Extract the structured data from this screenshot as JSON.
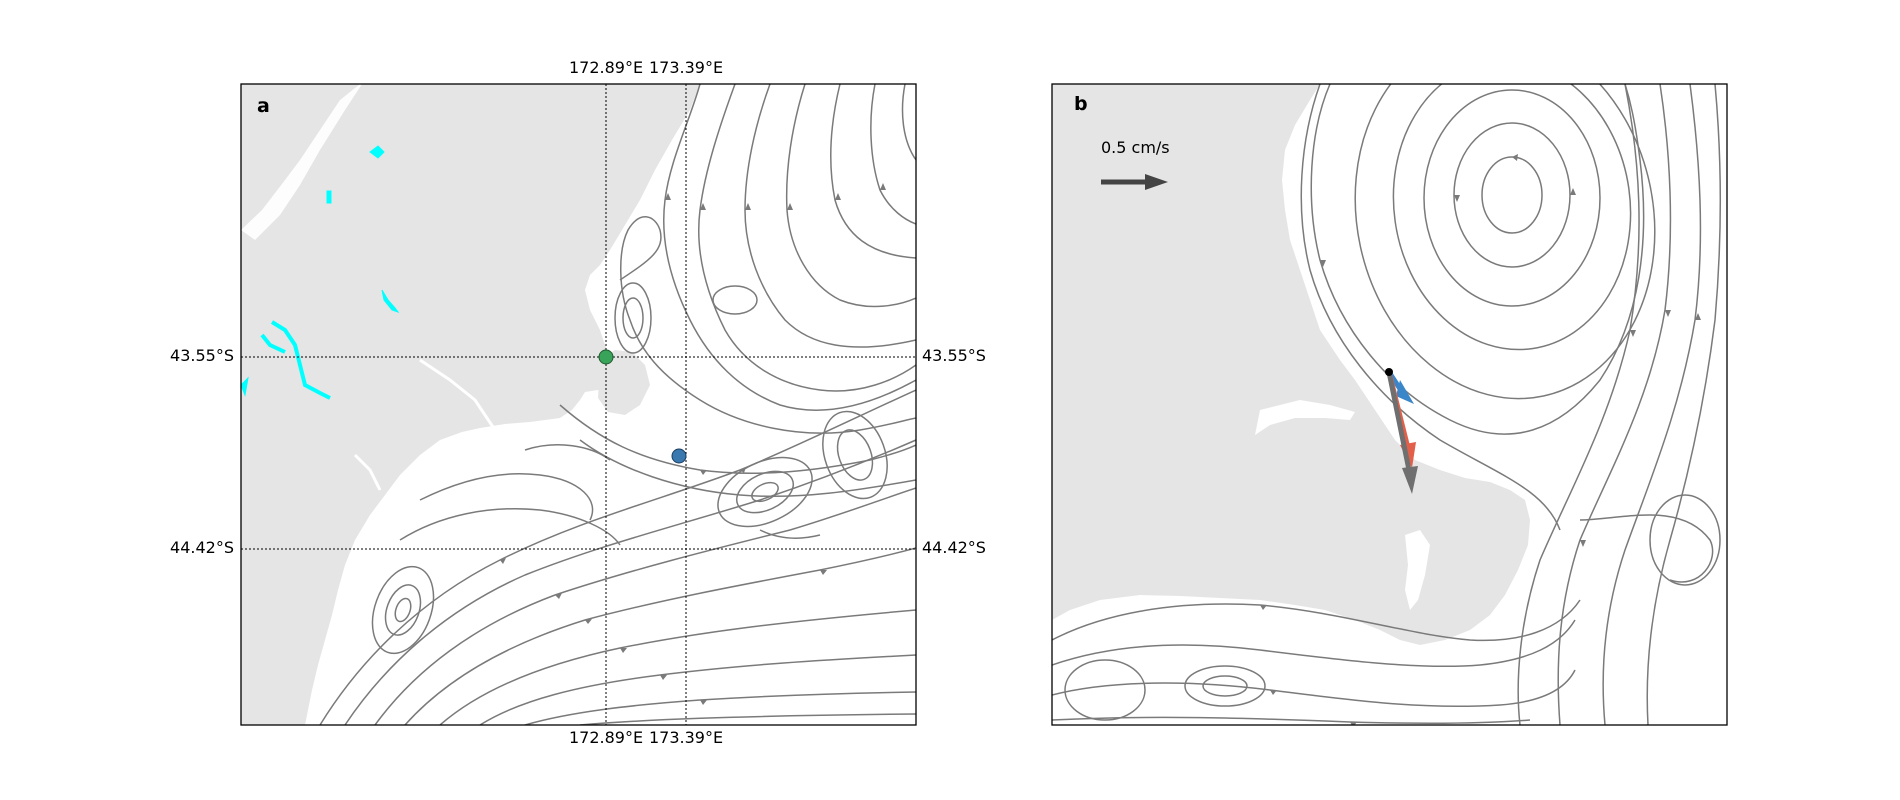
{
  "panel_a": {
    "label": "a",
    "lon_labels": [
      "172.89°E",
      "173.39°E"
    ],
    "lat_labels": [
      "43.55°S",
      "44.42°S"
    ]
  },
  "panel_b": {
    "label": "b",
    "scale_label": "0.5 cm/s"
  },
  "colors": {
    "land": "#e5e5e5",
    "stream": "#7a7a7a",
    "lake": "#00ffff",
    "green_site": "#3aa35a",
    "blue_site": "#3a78b0",
    "vec_blue": "#3a86c8",
    "vec_red": "#e2604a",
    "vec_gray": "#6f6f6f",
    "scale_arrow": "#444444"
  }
}
